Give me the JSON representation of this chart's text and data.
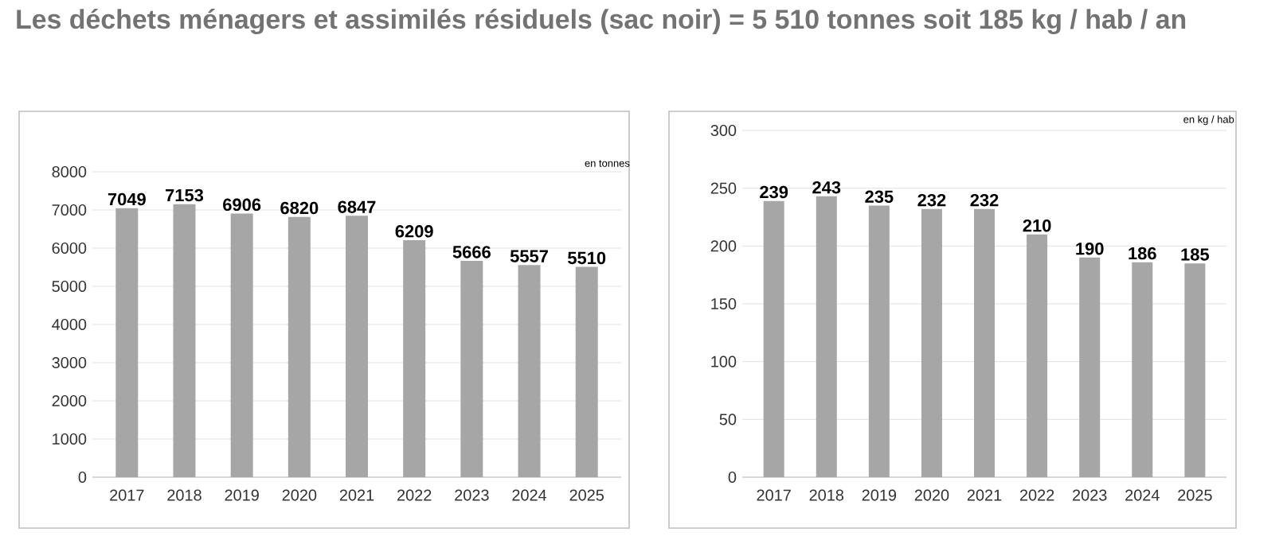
{
  "chart_data": [
    {
      "type": "bar",
      "title": "Les déchets ménagers et assimilés résiduels (sac noir) = 5 510 tonnes soit 185 kg / hab / an",
      "categories": [
        "2017",
        "2018",
        "2019",
        "2020",
        "2021",
        "2022",
        "2023",
        "2024",
        "2025"
      ],
      "values": [
        7049,
        7153,
        6906,
        6820,
        6847,
        6209,
        5666,
        5557,
        5510
      ],
      "color": "#a6a6a6",
      "ylim": [
        0,
        8000
      ],
      "yticks": [
        0,
        1000,
        2000,
        3000,
        4000,
        5000,
        6000,
        7000,
        8000
      ],
      "grid": "y",
      "data_labels": true,
      "annotations": [
        "en tonnes"
      ]
    },
    {
      "type": "bar",
      "categories": [
        "2017",
        "2018",
        "2019",
        "2020",
        "2021",
        "2022",
        "2023",
        "2024",
        "2025"
      ],
      "values": [
        239,
        243,
        235,
        232,
        232,
        210,
        190,
        186,
        185
      ],
      "color": "#a6a6a6",
      "ylim": [
        0,
        300
      ],
      "yticks": [
        0,
        50,
        100,
        150,
        200,
        250,
        300
      ],
      "grid": "y",
      "data_labels": true,
      "annotations": [
        "en kg / hab"
      ]
    }
  ]
}
